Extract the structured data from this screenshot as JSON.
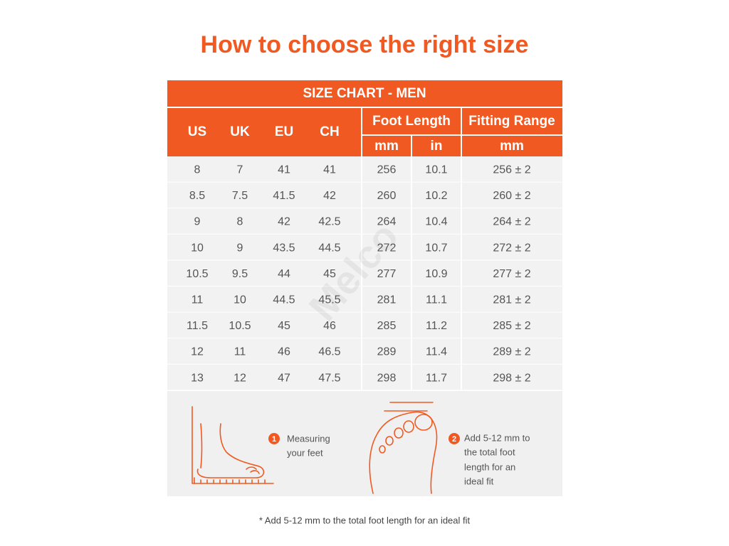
{
  "title": "How to choose the right size",
  "table": {
    "caption": "SIZE CHART - MEN",
    "size_headers": [
      "US",
      "UK",
      "EU",
      "CH"
    ],
    "foot_length": {
      "label": "Foot Length",
      "units": [
        "mm",
        "in"
      ]
    },
    "fitting_range": {
      "label": "Fitting Range",
      "unit": "mm"
    },
    "rows": [
      [
        "8",
        "7",
        "41",
        "41",
        "256",
        "10.1",
        "256 ± 2"
      ],
      [
        "8.5",
        "7.5",
        "41.5",
        "42",
        "260",
        "10.2",
        "260 ± 2"
      ],
      [
        "9",
        "8",
        "42",
        "42.5",
        "264",
        "10.4",
        "264 ± 2"
      ],
      [
        "10",
        "9",
        "43.5",
        "44.5",
        "272",
        "10.7",
        "272 ± 2"
      ],
      [
        "10.5",
        "9.5",
        "44",
        "45",
        "277",
        "10.9",
        "277 ± 2"
      ],
      [
        "11",
        "10",
        "44.5",
        "45.5",
        "281",
        "11.1",
        "281 ± 2"
      ],
      [
        "11.5",
        "10.5",
        "45",
        "46",
        "285",
        "11.2",
        "285 ± 2"
      ],
      [
        "12",
        "11",
        "46",
        "46.5",
        "289",
        "11.4",
        "289 ± 2"
      ],
      [
        "13",
        "12",
        "47",
        "47.5",
        "298",
        "11.7",
        "298 ± 2"
      ]
    ]
  },
  "watermark": "Melco",
  "steps": [
    {
      "number": "1",
      "lines": [
        "Measuring",
        "your feet"
      ]
    },
    {
      "number": "2",
      "lines": [
        "Add 5-12 mm to",
        "the total foot",
        "length for an",
        "ideal fit"
      ]
    }
  ],
  "footnote": "* Add 5-12 mm to the total foot length for an ideal fit"
}
